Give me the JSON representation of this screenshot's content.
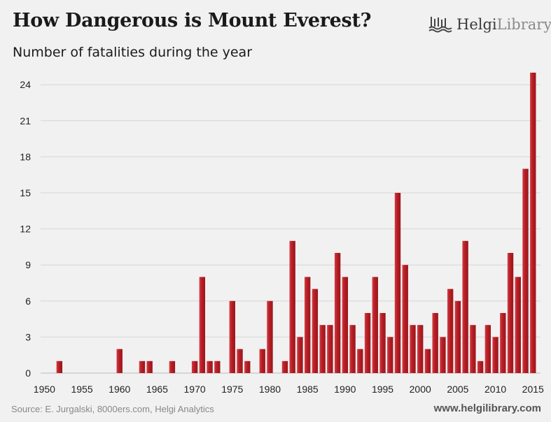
{
  "header": {
    "title": "How Dangerous is Mount Everest?",
    "subtitle": "Number of fatalities during the year",
    "brand_part1": "Helgi",
    "brand_part2": "Library."
  },
  "footer": {
    "source": "Source: E. Jurgalski, 8000ers.com, Helgi Analytics",
    "website": "www.helgilibrary.com"
  },
  "colors": {
    "bar": "#b01e23",
    "bar_light": "#d04048",
    "background": "#f1f1f1"
  },
  "chart_data": {
    "type": "bar",
    "title": "How Dangerous is Mount Everest?",
    "subtitle": "Number of fatalities during the year",
    "xlabel": "",
    "ylabel": "",
    "ylim": [
      0,
      25
    ],
    "yticks": [
      0,
      3,
      6,
      9,
      12,
      15,
      18,
      21,
      24
    ],
    "xticks": [
      1950,
      1955,
      1960,
      1965,
      1970,
      1975,
      1980,
      1985,
      1990,
      1995,
      2000,
      2005,
      2010,
      2015
    ],
    "grid": true,
    "x": [
      1952,
      1960,
      1963,
      1964,
      1967,
      1970,
      1971,
      1972,
      1973,
      1975,
      1976,
      1977,
      1979,
      1980,
      1982,
      1983,
      1984,
      1985,
      1986,
      1987,
      1988,
      1989,
      1990,
      1991,
      1992,
      1993,
      1994,
      1995,
      1996,
      1997,
      1998,
      1999,
      2000,
      2001,
      2002,
      2003,
      2004,
      2005,
      2006,
      2007,
      2008,
      2009,
      2010,
      2011,
      2012,
      2013,
      2014,
      2015
    ],
    "values": [
      1,
      2,
      1,
      1,
      1,
      1,
      8,
      1,
      1,
      6,
      2,
      1,
      2,
      6,
      1,
      11,
      3,
      8,
      7,
      4,
      4,
      10,
      8,
      4,
      2,
      5,
      8,
      5,
      3,
      15,
      9,
      4,
      4,
      2,
      5,
      3,
      7,
      6,
      11,
      4,
      1,
      4,
      3,
      5,
      10,
      8,
      17,
      25
    ]
  }
}
